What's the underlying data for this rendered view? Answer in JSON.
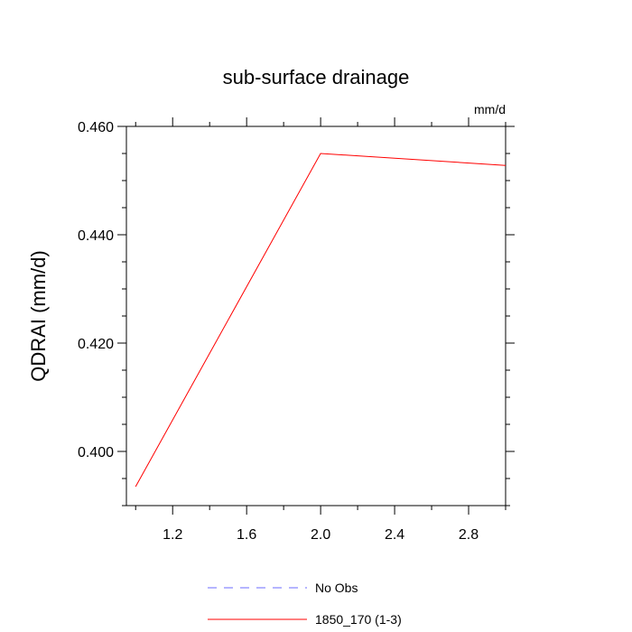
{
  "chart_data": {
    "type": "line",
    "title": "sub-surface drainage",
    "units_label": "mm/d",
    "xlabel": "",
    "ylabel": "QDRAI  (mm/d)",
    "xlim": [
      0.95,
      3.0
    ],
    "ylim": [
      0.39,
      0.46
    ],
    "x_ticks": [
      {
        "value": 1.2,
        "label": "1.2"
      },
      {
        "value": 1.6,
        "label": "1.6"
      },
      {
        "value": 2.0,
        "label": "2.0"
      },
      {
        "value": 2.4,
        "label": "2.4"
      },
      {
        "value": 2.8,
        "label": "2.8"
      }
    ],
    "y_ticks": [
      {
        "value": 0.4,
        "label": "0.400"
      },
      {
        "value": 0.42,
        "label": "0.420"
      },
      {
        "value": 0.44,
        "label": "0.440"
      },
      {
        "value": 0.46,
        "label": "0.460"
      }
    ],
    "y_minor_step": 0.005,
    "grid": false,
    "legend_position": "bottom",
    "series": [
      {
        "name": "1850_170 (1-3)",
        "color": "#ff0000",
        "dash": "solid",
        "x": [
          1.0,
          2.0,
          3.0
        ],
        "y": [
          0.3935,
          0.455,
          0.4528
        ]
      }
    ],
    "legend": [
      {
        "label": "No Obs",
        "color": "#6b6bff",
        "dash": "dashed"
      },
      {
        "label": "1850_170 (1-3)",
        "color": "#ff0000",
        "dash": "solid"
      }
    ]
  }
}
